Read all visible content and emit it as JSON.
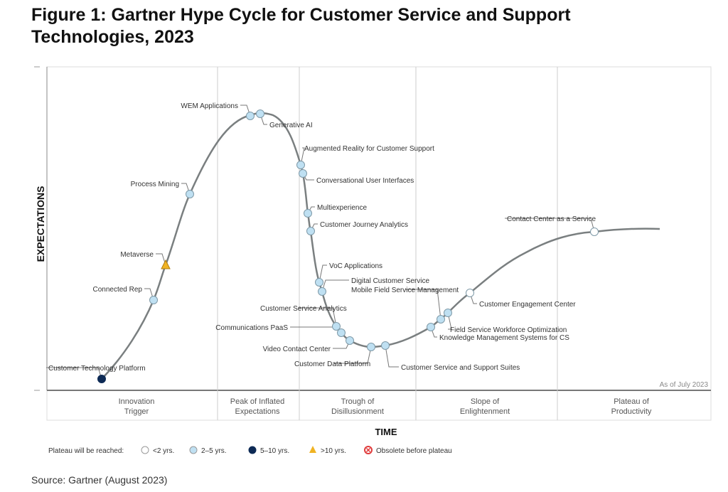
{
  "title": "Figure 1: Gartner Hype Cycle for Customer Service and Support Technologies, 2023",
  "source": "Source: Gartner (August 2023)",
  "chart_data": {
    "type": "hype-cycle",
    "ylabel": "EXPECTATIONS",
    "xlabel": "TIME",
    "as_of": "As of July 2023",
    "phases": [
      [
        "Innovation",
        "Trigger"
      ],
      [
        "Peak of Inflated",
        "Expectations"
      ],
      [
        "Trough of",
        "Disillusionment"
      ],
      [
        "Slope of",
        "Enlightenment"
      ],
      [
        "Plateau of",
        "Productivity"
      ]
    ],
    "legend": {
      "title": "Plateau will be reached:",
      "items": [
        {
          "key": "lt2",
          "label": "<2 yrs.",
          "color": "#ffffff"
        },
        {
          "key": "2to5",
          "label": "2–5 yrs.",
          "color": "#bfe0f2"
        },
        {
          "key": "5to10",
          "label": "5–10 yrs.",
          "color": "#0d2a55"
        },
        {
          "key": "gt10",
          "label": ">10 yrs.",
          "color": "#f0b323"
        },
        {
          "key": "obsolete",
          "label": "Obsolete before plateau",
          "color": "#e03c3c"
        }
      ]
    },
    "technologies": [
      {
        "name": "Customer Technology Platform",
        "phase": "Innovation Trigger",
        "plateau": "5to10"
      },
      {
        "name": "Connected Rep",
        "phase": "Innovation Trigger",
        "plateau": "2to5"
      },
      {
        "name": "Metaverse",
        "phase": "Innovation Trigger",
        "plateau": "gt10"
      },
      {
        "name": "Process Mining",
        "phase": "Innovation Trigger",
        "plateau": "2to5"
      },
      {
        "name": "WEM Applications",
        "phase": "Peak of Inflated Expectations",
        "plateau": "2to5"
      },
      {
        "name": "Generative AI",
        "phase": "Peak of Inflated Expectations",
        "plateau": "2to5"
      },
      {
        "name": "Augmented Reality for Customer Support",
        "phase": "Trough of Disillusionment",
        "plateau": "2to5"
      },
      {
        "name": "Conversational User Interfaces",
        "phase": "Trough of Disillusionment",
        "plateau": "2to5"
      },
      {
        "name": "Multiexperience",
        "phase": "Trough of Disillusionment",
        "plateau": "2to5"
      },
      {
        "name": "Customer Journey Analytics",
        "phase": "Trough of Disillusionment",
        "plateau": "2to5"
      },
      {
        "name": "VoC Applications",
        "phase": "Trough of Disillusionment",
        "plateau": "2to5"
      },
      {
        "name": "Digital Customer Service",
        "phase": "Trough of Disillusionment",
        "plateau": "2to5"
      },
      {
        "name": "Customer Service Analytics",
        "phase": "Trough of Disillusionment",
        "plateau": "2to5"
      },
      {
        "name": "Communications PaaS",
        "phase": "Trough of Disillusionment",
        "plateau": "2to5"
      },
      {
        "name": "Video Contact Center",
        "phase": "Trough of Disillusionment",
        "plateau": "2to5"
      },
      {
        "name": "Customer Data Platform",
        "phase": "Trough of Disillusionment",
        "plateau": "2to5"
      },
      {
        "name": "Customer Service and Support Suites",
        "phase": "Trough of Disillusionment",
        "plateau": "2to5"
      },
      {
        "name": "Knowledge Management Systems for CS",
        "phase": "Slope of Enlightenment",
        "plateau": "2to5"
      },
      {
        "name": "Mobile Field Service Management",
        "phase": "Slope of Enlightenment",
        "plateau": "2to5"
      },
      {
        "name": "Field Service Workforce Optimization",
        "phase": "Slope of Enlightenment",
        "plateau": "2to5"
      },
      {
        "name": "Customer Engagement Center",
        "phase": "Slope of Enlightenment",
        "plateau": "lt2"
      },
      {
        "name": "Contact Center as a Service",
        "phase": "Slope of Enlightenment",
        "plateau": "lt2"
      }
    ]
  }
}
